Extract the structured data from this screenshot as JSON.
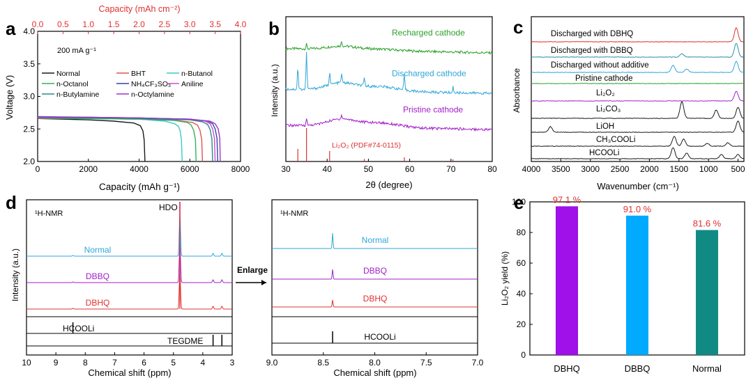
{
  "panel_labels": [
    "a",
    "b",
    "c",
    "d",
    "e"
  ],
  "chart_data": [
    {
      "panel": "a",
      "type": "line",
      "title": "",
      "xlabel": "Capacity (mAh g⁻¹)",
      "ylabel": "Voltage (V)",
      "x2label": "Capacity (mAh cm⁻²)",
      "xlim": [
        0,
        8000
      ],
      "ylim": [
        2.0,
        4.0
      ],
      "x2lim": [
        0,
        4.0
      ],
      "xticks": [
        0,
        2000,
        4000,
        6000,
        8000
      ],
      "yticks": [
        2.0,
        2.5,
        3.0,
        3.5,
        4.0
      ],
      "x2ticks": [
        "0.0",
        "0.5",
        "1.0",
        "1.5",
        "2.0",
        "2.5",
        "3.0",
        "3.5",
        "4.0"
      ],
      "annotation": "200 mA g⁻¹",
      "series": [
        {
          "name": "Normal",
          "color": "#1a1a1a",
          "x": [
            0,
            1000,
            2000,
            3000,
            3800,
            4050,
            4150,
            4200,
            4230
          ],
          "y": [
            2.66,
            2.65,
            2.64,
            2.62,
            2.59,
            2.55,
            2.47,
            2.33,
            2.0
          ]
        },
        {
          "name": "BHT",
          "color": "#e05252",
          "x": [
            0,
            2000,
            4000,
            5500,
            6100,
            6300,
            6400,
            6470,
            6500
          ],
          "y": [
            2.66,
            2.66,
            2.65,
            2.63,
            2.6,
            2.56,
            2.48,
            2.34,
            2.0
          ]
        },
        {
          "name": "n-Butanol",
          "color": "#3cc9c9",
          "x": [
            0,
            2000,
            4000,
            5000,
            5400,
            5550,
            5620,
            5670,
            5700
          ],
          "y": [
            2.67,
            2.66,
            2.65,
            2.62,
            2.58,
            2.54,
            2.47,
            2.33,
            2.0
          ]
        },
        {
          "name": "n-Octanol",
          "color": "#33b35a",
          "x": [
            0,
            2000,
            4000,
            5400,
            5900,
            6050,
            6150,
            6220,
            6250
          ],
          "y": [
            2.67,
            2.66,
            2.65,
            2.63,
            2.6,
            2.56,
            2.48,
            2.34,
            2.0
          ]
        },
        {
          "name": "NH₄CF₃SO₃",
          "color": "#3344aa",
          "x": [
            0,
            2000,
            4000,
            6000,
            6700,
            6900,
            7000,
            7070,
            7100
          ],
          "y": [
            2.68,
            2.68,
            2.67,
            2.65,
            2.62,
            2.58,
            2.5,
            2.36,
            2.0
          ]
        },
        {
          "name": "Aniline",
          "color": "#d04bd0",
          "x": [
            0,
            2000,
            4000,
            6000,
            6600,
            6800,
            6900,
            6970,
            7000
          ],
          "y": [
            2.68,
            2.68,
            2.67,
            2.65,
            2.62,
            2.58,
            2.5,
            2.36,
            2.0
          ]
        },
        {
          "name": "n-Butylamine",
          "color": "#2a8a8a",
          "x": [
            0,
            2000,
            4000,
            6000,
            6500,
            6700,
            6800,
            6870,
            6900
          ],
          "y": [
            2.67,
            2.67,
            2.66,
            2.64,
            2.61,
            2.57,
            2.49,
            2.35,
            2.0
          ]
        },
        {
          "name": "n-Octylamine",
          "color": "#9a35c8",
          "x": [
            0,
            2000,
            4000,
            6000,
            6800,
            7000,
            7120,
            7180,
            7200
          ],
          "y": [
            2.69,
            2.68,
            2.67,
            2.65,
            2.62,
            2.58,
            2.5,
            2.36,
            2.0
          ]
        }
      ]
    },
    {
      "panel": "b",
      "type": "line",
      "xlabel": "2θ (degree)",
      "ylabel": "Intensity (a.u.)",
      "xlim": [
        30,
        80
      ],
      "xticks": [
        30,
        40,
        50,
        60,
        70,
        80
      ],
      "series": [
        {
          "name": "Recharged cathode",
          "color": "#2ca02c",
          "offset": 0.78,
          "peaks": [
            [
              35,
              0.03
            ],
            [
              43.5,
              0.03
            ]
          ]
        },
        {
          "name": "Discharged cathode",
          "color": "#2fa6d9",
          "offset": 0.5,
          "peaks": [
            [
              32.9,
              0.15
            ],
            [
              35,
              0.25
            ],
            [
              40.6,
              0.09
            ],
            [
              43.5,
              0.06
            ],
            [
              49,
              0.05
            ],
            [
              58.7,
              0.1
            ],
            [
              70.5,
              0.04
            ]
          ]
        },
        {
          "name": "Pristine cathode",
          "color": "#a020c8",
          "offset": 0.25,
          "peaks": [
            [
              35,
              0.05
            ],
            [
              43.5,
              0.03
            ]
          ]
        }
      ],
      "reference": {
        "label": "Li₂O₂ (PDF#74-0115)",
        "color": "#e03030",
        "lines": [
          [
            32.9,
            0.3
          ],
          [
            35,
            0.8
          ],
          [
            40.6,
            0.25
          ],
          [
            49,
            0.06
          ],
          [
            58.7,
            0.1
          ],
          [
            70.5,
            0.05
          ]
        ]
      }
    },
    {
      "panel": "c",
      "type": "line",
      "xlabel": "Wavenumber (cm⁻¹)",
      "ylabel": "Absorbance",
      "xlim": [
        4000,
        400
      ],
      "xticks": [
        4000,
        3500,
        3000,
        2500,
        2000,
        1500,
        1000,
        500
      ],
      "series": [
        {
          "name": "Discharged with DBHQ",
          "color": "#e03030",
          "peaks": [
            [
              530,
              0.05
            ]
          ]
        },
        {
          "name": "Discharged with DBBQ",
          "color": "#2c8fa8",
          "peaks": [
            [
              1450,
              0.012
            ],
            [
              530,
              0.05
            ]
          ]
        },
        {
          "name": "Discharged without additive",
          "color": "#2fa6d9",
          "peaks": [
            [
              1600,
              0.025
            ],
            [
              1370,
              0.012
            ],
            [
              530,
              0.04
            ]
          ]
        },
        {
          "name": "Pristine cathode",
          "color": "#2ca02c",
          "peaks": []
        },
        {
          "name": "Li₂O₂",
          "color": "#a020c8",
          "peaks": [
            [
              530,
              0.035
            ]
          ]
        },
        {
          "name": "Li₂CO₃",
          "color": "#1a1a1a",
          "peaks": [
            [
              1450,
              0.06
            ],
            [
              870,
              0.03
            ],
            [
              500,
              0.04
            ]
          ]
        },
        {
          "name": "LiOH",
          "color": "#1a1a1a",
          "peaks": [
            [
              3676,
              0.02
            ],
            [
              500,
              0.04
            ]
          ]
        },
        {
          "name": "CH₃COOLi",
          "color": "#1a1a1a",
          "peaks": [
            [
              1580,
              0.035
            ],
            [
              1420,
              0.025
            ],
            [
              1020,
              0.01
            ],
            [
              670,
              0.012
            ]
          ]
        },
        {
          "name": "HCOOLi",
          "color": "#1a1a1a",
          "peaks": [
            [
              1600,
              0.04
            ],
            [
              1370,
              0.02
            ],
            [
              780,
              0.015
            ],
            [
              500,
              0.015
            ]
          ]
        }
      ]
    },
    {
      "panel": "d",
      "type": "line",
      "xlabel": "Chemical shift (ppm)",
      "ylabel": "Intensity (a.u.)",
      "nucleus": "¹H-NMR",
      "arrow_label": "Enlarge",
      "peak_label": "HDO",
      "left": {
        "xlim": [
          10,
          3
        ],
        "xticks": [
          10,
          9,
          8,
          7,
          6,
          5,
          4,
          3
        ]
      },
      "right": {
        "xlim": [
          9.0,
          7.0
        ],
        "xticks": [
          "9.0",
          "8.5",
          "8.0",
          "7.5",
          "7.0"
        ]
      },
      "series": [
        {
          "name": "Normal",
          "color": "#2fa6d9"
        },
        {
          "name": "DBBQ",
          "color": "#a020c8"
        },
        {
          "name": "DBHQ",
          "color": "#e03030"
        },
        {
          "name": "HCOOLi",
          "color": "#1a1a1a"
        },
        {
          "name": "TEGDME",
          "color": "#1a1a1a"
        }
      ]
    },
    {
      "panel": "e",
      "type": "bar",
      "categories": [
        "DBHQ",
        "DBBQ",
        "Normal"
      ],
      "values": [
        97.1,
        91.0,
        81.6
      ],
      "value_labels": [
        "97.1 %",
        "91.0 %",
        "81.6 %"
      ],
      "colors": [
        "#a010e8",
        "#00aaff",
        "#128a84"
      ],
      "label_color": "#e03030",
      "ylabel": "Li₂O₂ yield (%)",
      "ylim": [
        0,
        100
      ],
      "yticks": [
        0,
        20,
        40,
        60,
        80,
        100
      ]
    }
  ]
}
